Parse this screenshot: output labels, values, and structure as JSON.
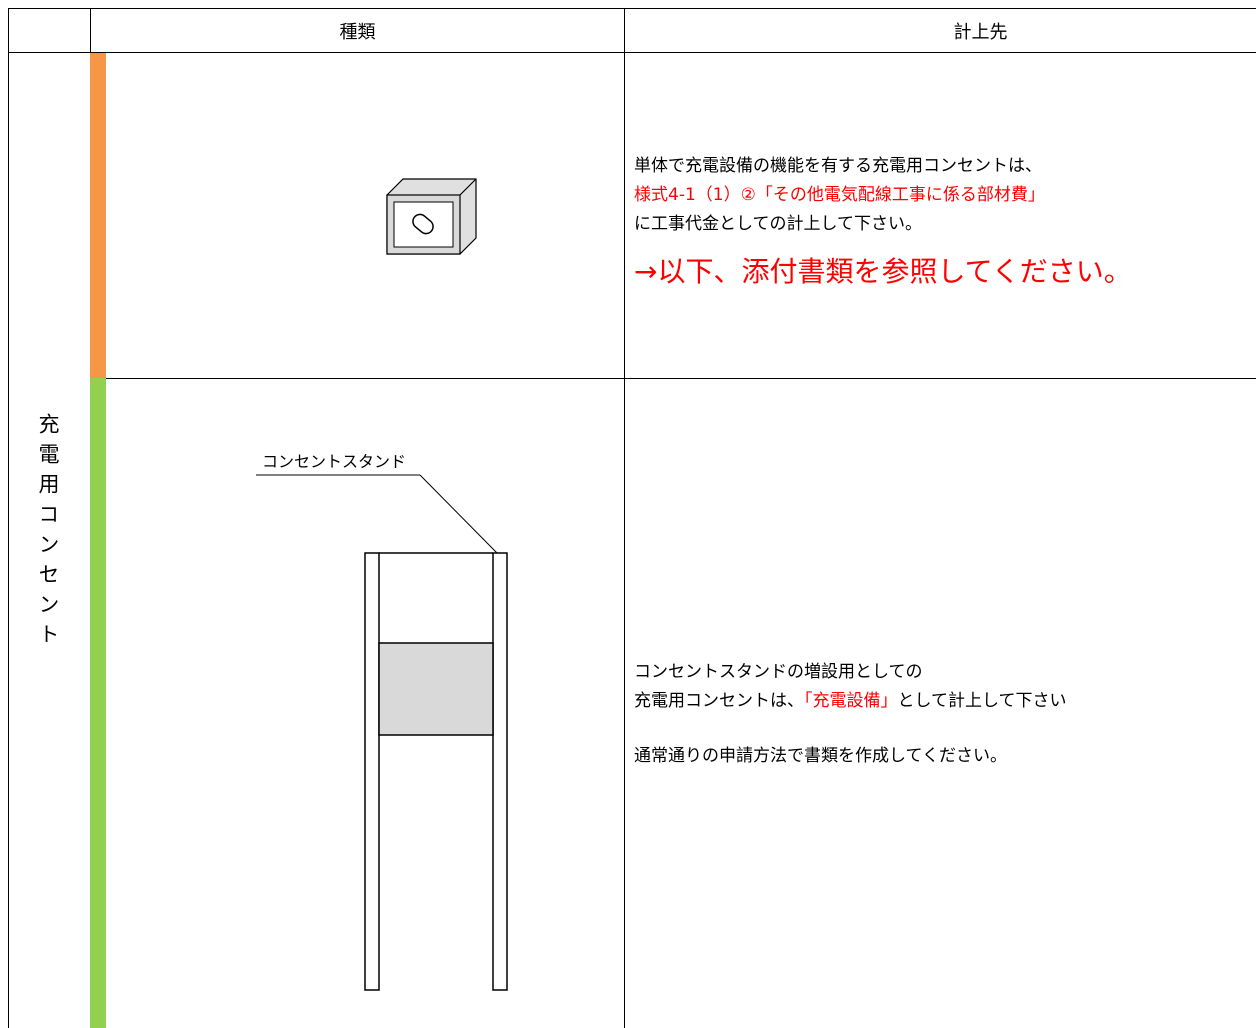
{
  "table": {
    "header": {
      "type_label": "種類",
      "destination_label": "計上先"
    },
    "group_label": "充電用コンセント",
    "rows": [
      {
        "destination": {
          "line1": "単体で充電設備の機能を有する充電用コンセントは、",
          "line2": "様式4-1（1）②「その他電気配線工事に係る部材費」",
          "line3": "に工事代金としての計上して下さい。",
          "note": "→以下、添付書類を参照してください。"
        }
      },
      {
        "drawing_label": "コンセントスタンド",
        "destination": {
          "line1": "コンセントスタンドの増設用としての",
          "line2_before": "充電用コンセントは、",
          "line2_highlight": "「充電設備」",
          "line2_after": "として計上して下さい",
          "line3": "通常通りの申請方法で書類を作成してください。"
        }
      }
    ]
  }
}
